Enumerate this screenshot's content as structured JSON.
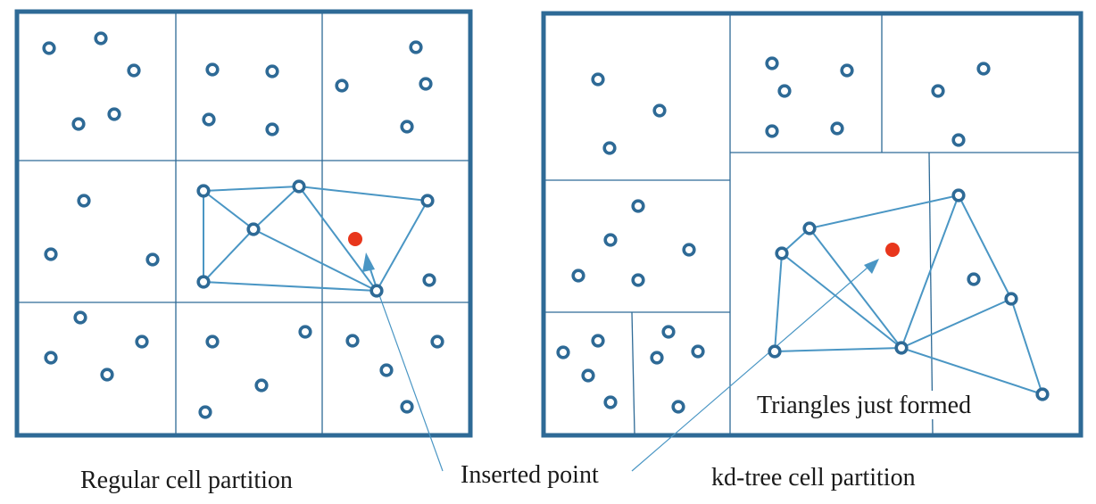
{
  "captions": {
    "regular_partition": "Regular cell partition",
    "inserted_point": "Inserted point",
    "kdtree_partition": "kd-tree cell partition",
    "triangles_formed": "Triangles just formed"
  },
  "colors": {
    "frame": "#2e6a96",
    "point": "#2e6a96",
    "triangulation": "#4a96c4",
    "inserted_point": "#e8361c",
    "arrow": "#4a96c4",
    "text": "#1a1a1a"
  },
  "icons": {
    "sample_point": "ring-dot-icon",
    "inserted_point": "red-dot-icon",
    "arrow": "arrowhead-icon"
  }
}
